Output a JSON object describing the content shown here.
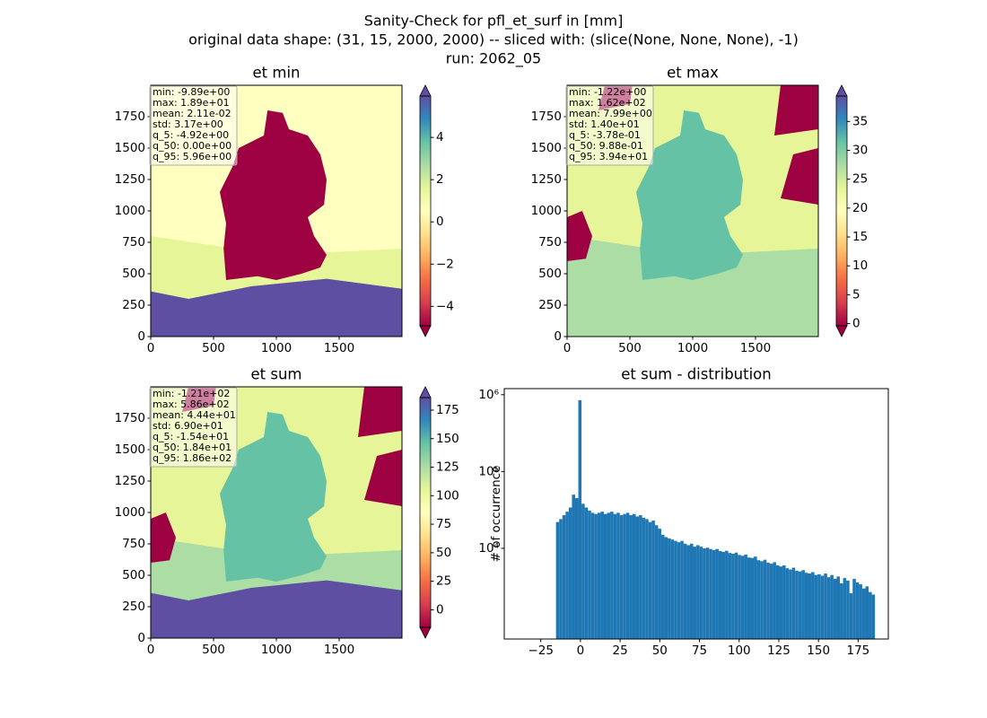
{
  "title": [
    "Sanity-Check for pfl_et_surf in [mm]",
    "original data shape: (31, 15, 2000, 2000) -- sliced with: (slice(None, None, None), -1)",
    "run: 2062_05"
  ],
  "chart_data": [
    {
      "type": "heatmap",
      "title": "et min",
      "xlim": [
        0,
        2000
      ],
      "ylim": [
        0,
        2000
      ],
      "xticks": [
        0,
        500,
        1000,
        1500
      ],
      "yticks": [
        0,
        250,
        500,
        750,
        1000,
        1250,
        1500,
        1750
      ],
      "stats": [
        "min: -9.89e+00",
        "max: 1.89e+01",
        "mean: 2.11e-02",
        "std: 3.17e+00",
        "q_5: -4.92e+00",
        "q_50: 0.00e+00",
        "q_95: 5.96e+00"
      ],
      "cmap": "Spectral",
      "colorbar": {
        "lim": [
          -4.92,
          5.96
        ],
        "extend": "both",
        "ticks": [
          {
            "value": -4,
            "label": "−4"
          },
          {
            "value": -2,
            "label": "−2"
          },
          0,
          2,
          4
        ]
      }
    },
    {
      "type": "heatmap",
      "title": "et max",
      "xlim": [
        0,
        2000
      ],
      "ylim": [
        0,
        2000
      ],
      "xticks": [
        0,
        500,
        1000,
        1500
      ],
      "yticks": [
        0,
        250,
        500,
        750,
        1000,
        1250,
        1500,
        1750
      ],
      "stats": [
        "min: -1.22e+00",
        "max: 1.62e+02",
        "mean: 7.99e+00",
        "std: 1.40e+01",
        "q_5: -3.78e-01",
        "q_50: 9.88e-01",
        "q_95: 3.94e+01"
      ],
      "cmap": "Spectral",
      "colorbar": {
        "lim": [
          -0.378,
          39.4
        ],
        "extend": "both",
        "ticks": [
          0,
          5,
          10,
          15,
          20,
          25,
          30,
          35
        ]
      }
    },
    {
      "type": "heatmap",
      "title": "et sum",
      "xlim": [
        0,
        2000
      ],
      "ylim": [
        0,
        2000
      ],
      "xticks": [
        0,
        500,
        1000,
        1500
      ],
      "yticks": [
        0,
        250,
        500,
        750,
        1000,
        1250,
        1500,
        1750
      ],
      "stats": [
        "min: -1.21e+02",
        "max: 5.86e+02",
        "mean: 4.44e+01",
        "std: 6.90e+01",
        "q_5: -1.54e+01",
        "q_50: 1.84e+01",
        "q_95: 1.86e+02"
      ],
      "cmap": "Spectral",
      "colorbar": {
        "lim": [
          -15.4,
          186
        ],
        "extend": "both",
        "ticks": [
          0,
          25,
          50,
          75,
          100,
          125,
          150,
          175
        ]
      }
    },
    {
      "type": "histogram",
      "title": "et sum - distribution",
      "ylabel": "# of occurrence",
      "color": "#1f77b4",
      "yscale": "log",
      "xlim": [
        -48,
        194
      ],
      "ylim": [
        660,
        1200000
      ],
      "xticks": [
        {
          "value": -25,
          "label": "−25"
        },
        0,
        25,
        50,
        75,
        100,
        125,
        150,
        175
      ],
      "yticks": [
        {
          "value": 10000,
          "label": "10⁴"
        },
        {
          "value": 100000,
          "label": "10⁵"
        },
        {
          "value": 1000000,
          "label": "10⁶"
        }
      ],
      "bins": [
        -15.4,
        -13.39,
        -11.38,
        -9.37,
        -7.36,
        -5.35,
        -3.34,
        -1.33,
        0.68,
        2.69,
        4.7,
        6.71,
        8.72,
        10.73,
        12.74,
        14.75,
        16.76,
        18.77,
        20.78,
        22.79,
        24.8,
        26.81,
        28.82,
        30.83,
        32.84,
        34.85,
        36.86,
        38.87,
        40.88,
        42.89,
        44.9,
        46.91,
        48.92,
        50.93,
        52.94,
        54.95,
        56.96,
        58.97,
        60.98,
        62.99,
        65.0,
        67.01,
        69.02,
        71.03,
        73.04,
        75.05,
        77.06,
        79.07,
        81.08,
        83.09,
        85.1,
        87.11,
        89.12,
        91.13,
        93.14,
        95.15,
        97.16,
        99.17,
        101.18,
        103.19,
        105.2,
        107.21,
        109.22,
        111.23,
        113.24,
        115.25,
        117.26,
        119.27,
        121.28,
        123.29,
        125.3,
        127.31,
        129.32,
        131.33,
        133.34,
        135.35,
        137.36,
        139.37,
        141.38,
        143.39,
        145.4,
        147.41,
        149.42,
        151.43,
        153.44,
        155.45,
        157.46,
        159.47,
        161.48,
        163.49,
        165.5,
        167.51,
        169.52,
        171.53,
        173.54,
        175.55,
        177.56,
        179.57,
        181.58,
        183.59,
        185.6
      ],
      "counts": [
        22000,
        24000,
        27000,
        30000,
        34000,
        50000,
        45000,
        850000,
        38000,
        34000,
        31000,
        29000,
        28000,
        29000,
        30000,
        28000,
        29000,
        30000,
        28000,
        29000,
        27000,
        28000,
        29000,
        27000,
        28000,
        26000,
        27000,
        25000,
        24000,
        22000,
        23000,
        20000,
        18000,
        15000,
        14000,
        13500,
        13000,
        12500,
        12000,
        12500,
        11500,
        11000,
        11500,
        10500,
        11000,
        10500,
        10000,
        10200,
        9800,
        9500,
        9800,
        9200,
        9000,
        9300,
        8700,
        8500,
        8800,
        8200,
        8000,
        8300,
        7600,
        7500,
        7800,
        7000,
        6800,
        7100,
        6500,
        6300,
        6600,
        6000,
        5800,
        6000,
        5500,
        5300,
        5600,
        5100,
        5000,
        5200,
        4800,
        4700,
        4900,
        4500,
        4600,
        4400,
        4700,
        4200,
        4500,
        4000,
        4300,
        3500,
        4100,
        3800,
        2600,
        4000,
        3600,
        3400,
        3000,
        3200,
        2700,
        2500
      ]
    }
  ]
}
